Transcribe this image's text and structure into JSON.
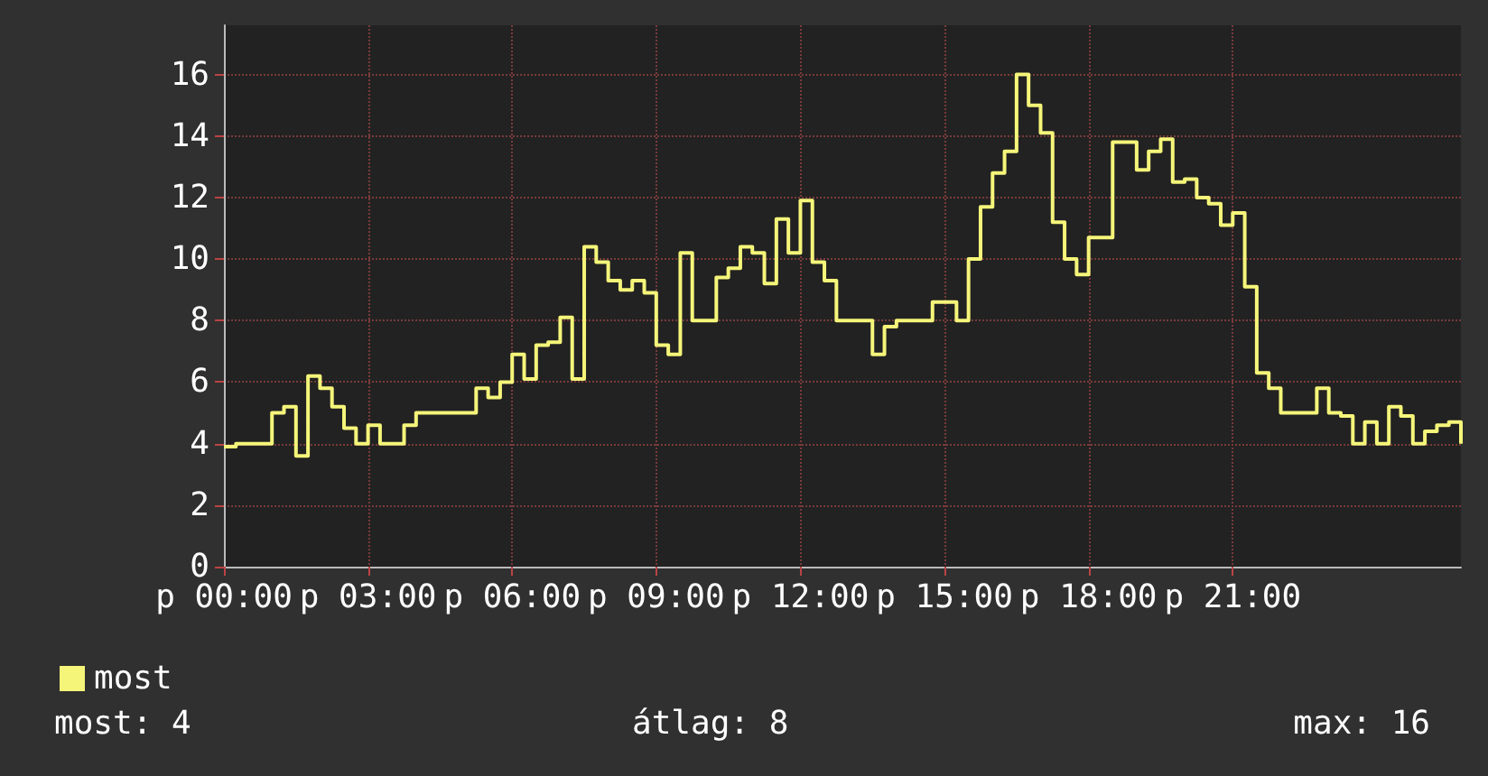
{
  "chart_data": {
    "type": "step",
    "categories": [
      "p 00:00",
      null,
      null,
      null,
      null,
      null,
      null,
      null,
      null,
      null,
      null,
      null,
      "p 03:00",
      null,
      null,
      null,
      null,
      null,
      null,
      null,
      null,
      null,
      null,
      null,
      "p 06:00",
      null,
      null,
      null,
      null,
      null,
      null,
      null,
      null,
      null,
      null,
      null,
      "p 09:00",
      null,
      null,
      null,
      null,
      null,
      null,
      null,
      null,
      null,
      null,
      null,
      "p 12:00",
      null,
      null,
      null,
      null,
      null,
      null,
      null,
      null,
      null,
      null,
      null,
      "p 15:00",
      null,
      null,
      null,
      null,
      null,
      null,
      null,
      null,
      null,
      null,
      null,
      "p 18:00",
      null,
      null,
      null,
      null,
      null,
      null,
      null,
      null,
      null,
      null,
      null,
      "p 21:00",
      null,
      null,
      null,
      null,
      null,
      null,
      null,
      null,
      null,
      null,
      null,
      null,
      null,
      null,
      null,
      null,
      null,
      null,
      null
    ],
    "series": [
      {
        "name": "most",
        "color": "#f5f57a",
        "values": [
          3.9,
          4,
          4,
          4,
          5,
          5.2,
          3.6,
          6.2,
          5.8,
          5.2,
          4.5,
          4,
          4.6,
          4,
          4,
          4.6,
          5,
          5,
          5,
          5,
          5,
          5.8,
          5.5,
          6,
          6.9,
          6.1,
          7.2,
          7.3,
          8.1,
          6.1,
          10.4,
          9.9,
          9.3,
          9,
          9.3,
          8.9,
          7.2,
          6.9,
          10.2,
          8,
          8,
          9.4,
          9.7,
          10.4,
          10.2,
          9.2,
          11.3,
          10.2,
          11.9,
          9.9,
          9.3,
          8,
          8,
          8,
          6.9,
          7.8,
          8,
          8,
          8,
          8.6,
          8.6,
          8,
          10,
          11.7,
          12.8,
          13.5,
          16,
          15,
          14.1,
          11.2,
          10,
          9.5,
          10.7,
          10.7,
          13.8,
          13.8,
          12.9,
          13.5,
          13.9,
          12.5,
          12.6,
          12,
          11.8,
          11.1,
          11.5,
          9.1,
          6.3,
          5.8,
          5,
          5,
          5,
          5.8,
          5,
          4.9,
          4,
          4.7,
          4,
          5.2,
          4.9,
          4,
          4.4,
          4.6,
          4.7,
          4
        ]
      }
    ],
    "ylim": [
      0,
      17.6
    ],
    "yticks": [
      0,
      2,
      4,
      6,
      8,
      10,
      12,
      14,
      16
    ],
    "grid": true,
    "legend": "bottom left",
    "annotations": [
      "most: 4",
      "átlag: 8",
      "max: 16"
    ]
  }
}
